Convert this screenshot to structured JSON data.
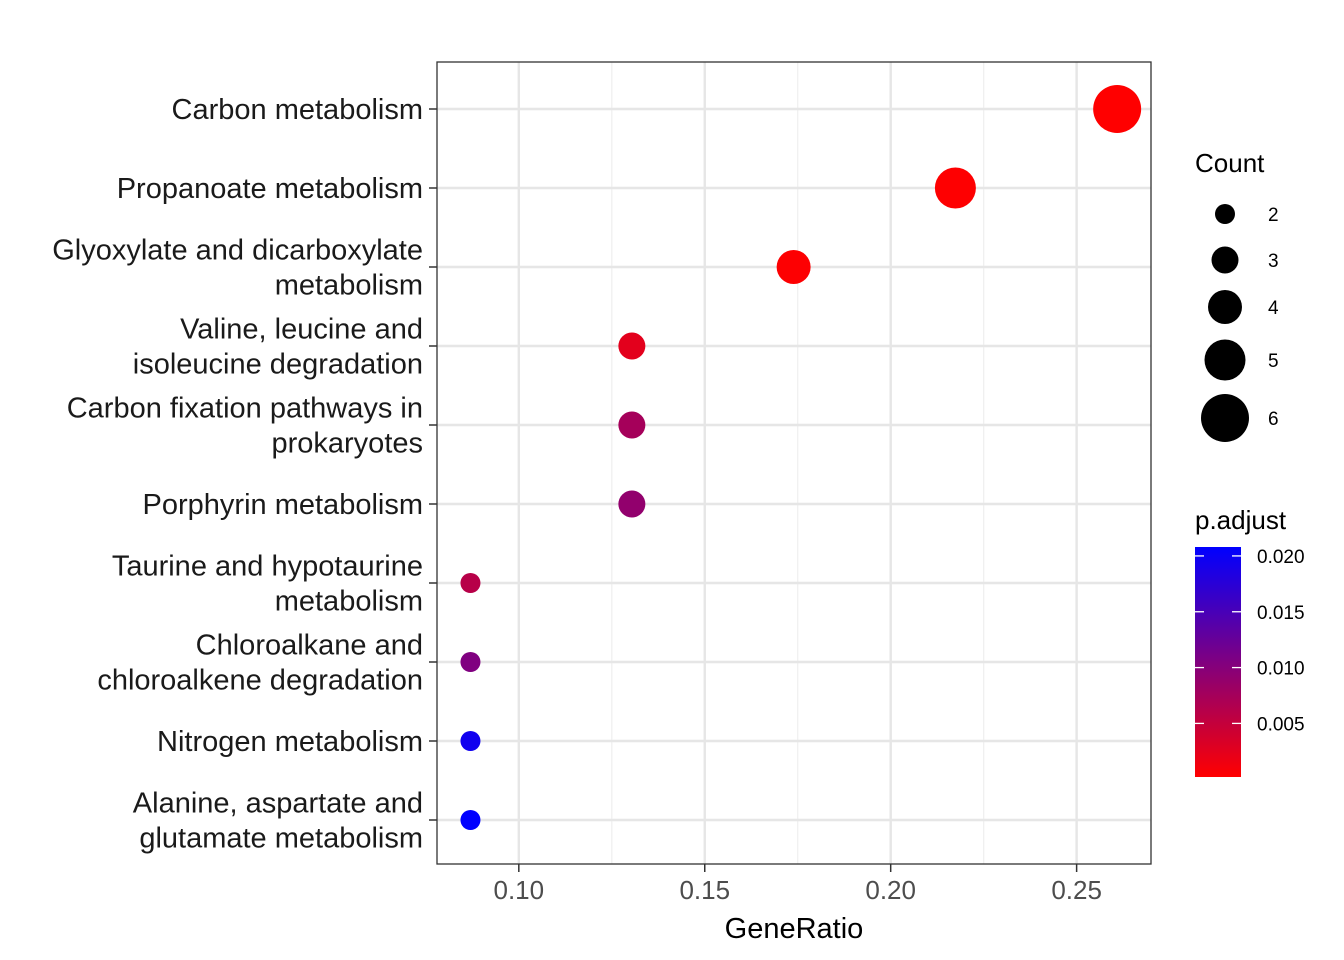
{
  "chart_data": {
    "type": "scatter",
    "xlabel": "GeneRatio",
    "ylabel": "",
    "xlim": [
      0.078,
      0.27
    ],
    "x_ticks": [
      "0.10",
      "0.15",
      "0.20",
      "0.25"
    ],
    "x_tick_values": [
      0.1,
      0.15,
      0.2,
      0.25
    ],
    "grid": true,
    "categories": [
      {
        "lines": [
          "Carbon metabolism"
        ],
        "x": 0.2609,
        "count": 6,
        "p_adjust": 0.0002
      },
      {
        "lines": [
          "Propanoate metabolism"
        ],
        "x": 0.2174,
        "count": 5,
        "p_adjust": 0.0003
      },
      {
        "lines": [
          "Glyoxylate and dicarboxylate",
          "metabolism"
        ],
        "x": 0.1739,
        "count": 4,
        "p_adjust": 0.0004
      },
      {
        "lines": [
          "Valine, leucine and",
          "isoleucine degradation"
        ],
        "x": 0.1304,
        "count": 3,
        "p_adjust": 0.0025
      },
      {
        "lines": [
          "Carbon fixation pathways in",
          "prokaryotes"
        ],
        "x": 0.1304,
        "count": 3,
        "p_adjust": 0.0075
      },
      {
        "lines": [
          "Porphyrin metabolism"
        ],
        "x": 0.1304,
        "count": 3,
        "p_adjust": 0.009
      },
      {
        "lines": [
          "Taurine and hypotaurine",
          "metabolism"
        ],
        "x": 0.087,
        "count": 2,
        "p_adjust": 0.006
      },
      {
        "lines": [
          "Chloroalkane and",
          "chloroalkene degradation"
        ],
        "x": 0.087,
        "count": 2,
        "p_adjust": 0.0105
      },
      {
        "lines": [
          "Nitrogen metabolism"
        ],
        "x": 0.087,
        "count": 2,
        "p_adjust": 0.0195
      },
      {
        "lines": [
          "Alanine, aspartate and",
          "glutamate metabolism"
        ],
        "x": 0.087,
        "count": 2,
        "p_adjust": 0.0208
      }
    ],
    "legend": {
      "size_title": "Count",
      "size_values": [
        2,
        3,
        4,
        5,
        6
      ],
      "size_labels": [
        "2",
        "3",
        "4",
        "5",
        "6"
      ],
      "color_title": "p.adjust",
      "color_range": [
        0.0002,
        0.0208
      ],
      "color_ticks": [
        0.005,
        0.01,
        0.015,
        0.02
      ],
      "color_tick_labels": [
        "0.005",
        "0.010",
        "0.015",
        "0.020"
      ],
      "color_low": "#FF0000",
      "color_high": "#0000FF",
      "placement": "right"
    }
  }
}
